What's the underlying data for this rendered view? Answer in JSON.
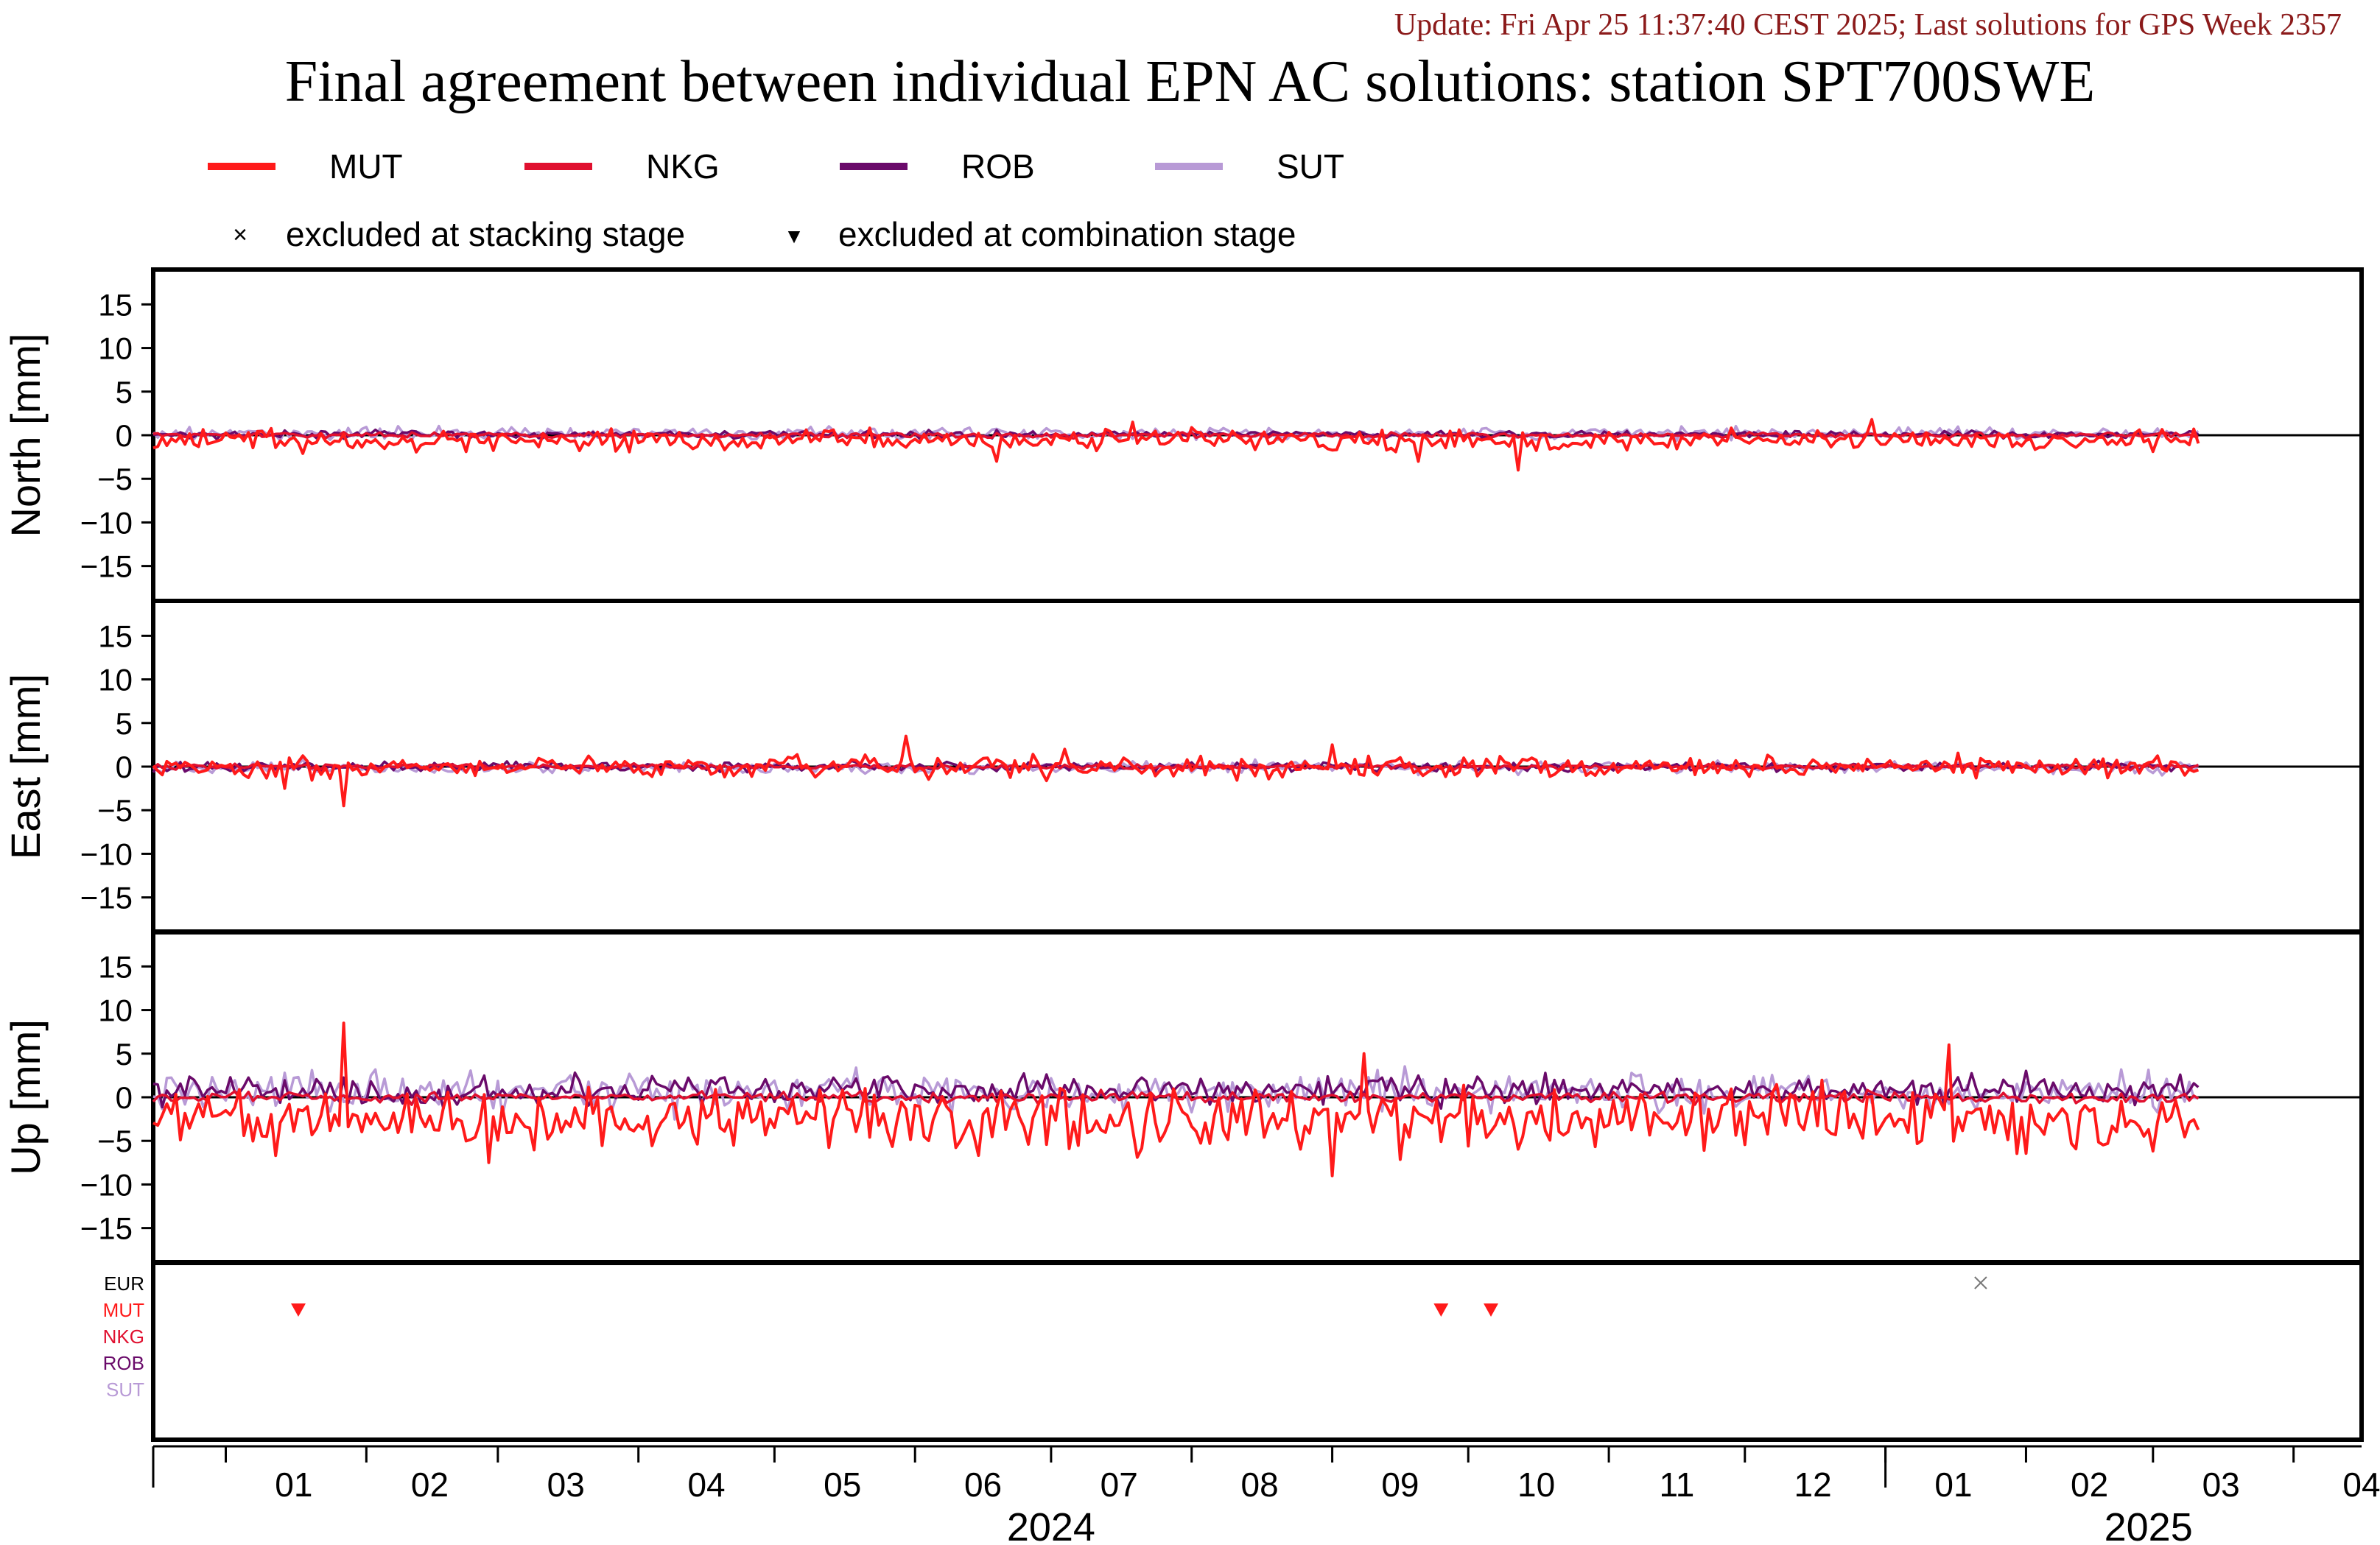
{
  "header": {
    "update_text": "Update: Fri Apr 25 11:37:40 CEST 2025; Last solutions for GPS Week 2357",
    "title": "Final agreement between individual EPN AC solutions: station SPT700SWE"
  },
  "legend": {
    "series": [
      {
        "name": "MUT",
        "color": "#ff1a1a"
      },
      {
        "name": "NKG",
        "color": "#e0102f"
      },
      {
        "name": "ROB",
        "color": "#6a0a6a"
      },
      {
        "name": "SUT",
        "color": "#b89ad6"
      }
    ],
    "marker_notes": [
      {
        "symbol": "×",
        "label": "excluded at stacking stage"
      },
      {
        "symbol": "▼",
        "label": "excluded at combination stage"
      }
    ]
  },
  "chart_data": {
    "type": "line",
    "x_axis": {
      "start": "2023-12-16",
      "end": "2025-04-16",
      "month_ticks": [
        {
          "label": "01",
          "date": "2024-01-16"
        },
        {
          "label": "02",
          "date": "2024-02-15"
        },
        {
          "label": "03",
          "date": "2024-03-16"
        },
        {
          "label": "04",
          "date": "2024-04-16"
        },
        {
          "label": "05",
          "date": "2024-05-16"
        },
        {
          "label": "06",
          "date": "2024-06-16"
        },
        {
          "label": "07",
          "date": "2024-07-16"
        },
        {
          "label": "08",
          "date": "2024-08-16"
        },
        {
          "label": "09",
          "date": "2024-09-16"
        },
        {
          "label": "10",
          "date": "2024-10-16"
        },
        {
          "label": "11",
          "date": "2024-11-16"
        },
        {
          "label": "12",
          "date": "2024-12-16"
        },
        {
          "label": "01",
          "date": "2025-01-16"
        },
        {
          "label": "02",
          "date": "2025-02-15"
        },
        {
          "label": "03",
          "date": "2025-03-16"
        },
        {
          "label": "04",
          "date": "2025-04-16"
        }
      ],
      "year_labels": [
        {
          "label": "2024",
          "date": "2024-07-01"
        },
        {
          "label": "2025",
          "date": "2025-02-28"
        }
      ],
      "year_boundary": "2025-01-01"
    },
    "panels": [
      {
        "ylabel": "North [mm]",
        "ylim": [
          -19,
          19
        ],
        "yticks": [
          15,
          10,
          5,
          0,
          -5,
          -10,
          -15
        ],
        "series": [
          {
            "name": "MUT",
            "spread": 0.6,
            "offset": -0.6,
            "spikes": [
              {
                "date": "2024-06-19",
                "value": -3.0
              },
              {
                "date": "2024-10-12",
                "value": -4.0
              },
              {
                "date": "2024-12-29",
                "value": 1.8
              },
              {
                "date": "2024-07-19",
                "value": 1.5
              },
              {
                "date": "2024-09-20",
                "value": -3.0
              }
            ]
          },
          {
            "name": "NKG",
            "spread": 0.15,
            "offset": 0.0,
            "spikes": []
          },
          {
            "name": "ROB",
            "spread": 0.2,
            "offset": 0.1,
            "spikes": []
          },
          {
            "name": "SUT",
            "spread": 0.35,
            "offset": 0.2,
            "spikes": []
          }
        ]
      },
      {
        "ylabel": "East [mm]",
        "ylim": [
          -19,
          19
        ],
        "yticks": [
          15,
          10,
          5,
          0,
          -5,
          -10,
          -15
        ],
        "series": [
          {
            "name": "MUT",
            "spread": 0.6,
            "offset": 0.0,
            "spikes": [
              {
                "date": "2024-01-27",
                "value": -4.5
              },
              {
                "date": "2024-05-30",
                "value": 3.5
              },
              {
                "date": "2024-09-01",
                "value": 2.5
              },
              {
                "date": "2024-07-04",
                "value": 2.0
              },
              {
                "date": "2024-01-14",
                "value": -2.5
              }
            ]
          },
          {
            "name": "NKG",
            "spread": 0.15,
            "offset": 0.0,
            "spikes": []
          },
          {
            "name": "ROB",
            "spread": 0.25,
            "offset": 0.0,
            "spikes": []
          },
          {
            "name": "SUT",
            "spread": 0.35,
            "offset": -0.1,
            "spikes": []
          }
        ]
      },
      {
        "ylabel": "Up [mm]",
        "ylim": [
          -19,
          19
        ],
        "yticks": [
          15,
          10,
          5,
          0,
          -5,
          -10,
          -15
        ],
        "series": [
          {
            "name": "MUT",
            "spread": 1.8,
            "offset": -2.5,
            "spikes": [
              {
                "date": "2024-01-27",
                "value": 8.5
              },
              {
                "date": "2024-02-28",
                "value": -7.5
              },
              {
                "date": "2024-09-01",
                "value": -9.0
              },
              {
                "date": "2024-09-08",
                "value": 5.0
              },
              {
                "date": "2025-01-15",
                "value": 6.0
              }
            ]
          },
          {
            "name": "NKG",
            "spread": 0.3,
            "offset": 0.0,
            "spikes": []
          },
          {
            "name": "ROB",
            "spread": 0.8,
            "offset": 0.8,
            "spikes": []
          },
          {
            "name": "SUT",
            "spread": 1.1,
            "offset": 0.6,
            "spikes": []
          }
        ]
      }
    ],
    "exclusion_panel": {
      "rows": [
        {
          "name": "EUR",
          "color": "#000000"
        },
        {
          "name": "MUT",
          "color": "#ff1a1a"
        },
        {
          "name": "NKG",
          "color": "#e0102f"
        },
        {
          "name": "ROB",
          "color": "#6a0a6a"
        },
        {
          "name": "SUT",
          "color": "#b89ad6"
        }
      ],
      "markers": [
        {
          "row": "MUT",
          "symbol": "▼",
          "date": "2024-01-17"
        },
        {
          "row": "MUT",
          "symbol": "▼",
          "date": "2024-09-25"
        },
        {
          "row": "MUT",
          "symbol": "▼",
          "date": "2024-10-06"
        },
        {
          "row": "EUR",
          "symbol": "×",
          "date": "2025-01-22"
        }
      ]
    },
    "data_end": "2025-03-11"
  }
}
